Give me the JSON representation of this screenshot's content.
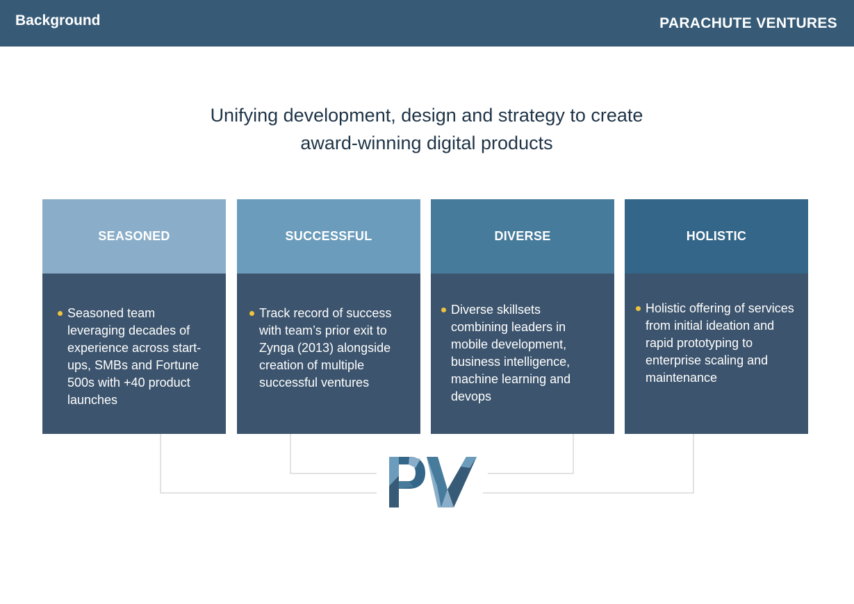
{
  "header": {
    "section_title": "Background",
    "brand": "PARACHUTE VENTURES"
  },
  "headline": {
    "line1": "Unifying development, design and strategy to create",
    "line2": "award-winning digital products"
  },
  "columns": [
    {
      "title": "SEASONED",
      "text": "Seasoned team leveraging decades of experience across start-ups, SMBs and Fortune 500s with +40 product launches",
      "header_color": "#8aaec9"
    },
    {
      "title": "SUCCESSFUL",
      "text": "Track record of success with team’s prior exit to Zynga (2013) alongside creation of multiple successful ventures",
      "header_color": "#6b9cbb"
    },
    {
      "title": "DIVERSE",
      "text": "Diverse skillsets combining leaders in mobile development, business intelligence, machine learning and devops",
      "header_color": "#477b9b"
    },
    {
      "title": "HOLISTIC",
      "text": "Holistic offering of services from initial ideation and rapid prototyping to enterprise scaling and maintenance",
      "header_color": "#336688"
    }
  ],
  "logo": {
    "text": "PV",
    "icon": "pv-monogram-logo"
  },
  "colors": {
    "header_bar": "#375b77",
    "card_body": "#3c546d",
    "bullet": "#efc33d",
    "headline_text": "#1e3346"
  }
}
